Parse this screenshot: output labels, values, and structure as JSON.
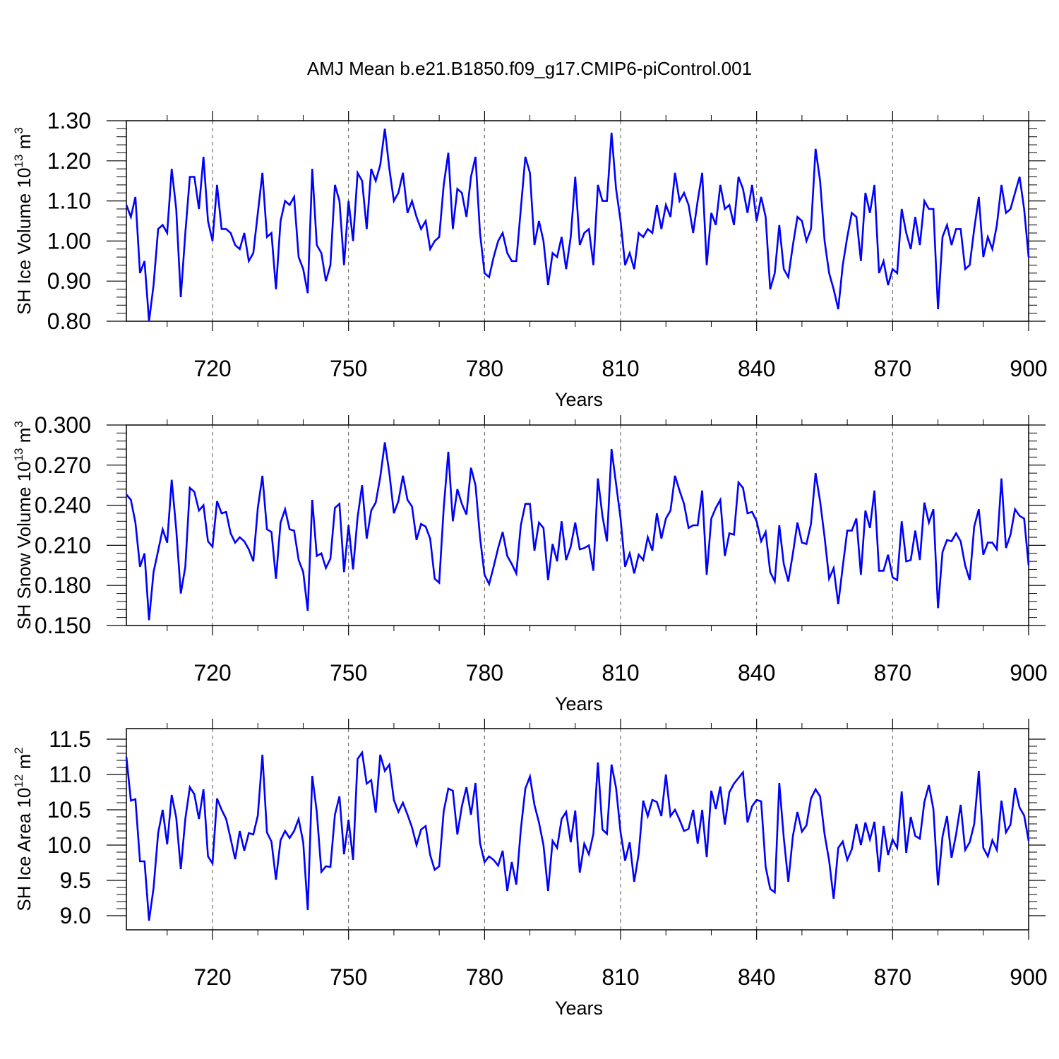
{
  "figure": {
    "title": "AMJ Mean b.e21.B1850.f09_g17.CMIP6-piControl.001"
  },
  "chart_data": [
    {
      "type": "line",
      "title": "AMJ Mean b.e21.B1850.f09_g17.CMIP6-piControl.001",
      "xlabel": "Years",
      "ylabel": "SH Ice Volume 10",
      "ylabel_exp": "13",
      "ylabel_unit": " m",
      "ylabel_unit_exp": "3",
      "xlim": [
        701,
        900
      ],
      "ylim": [
        0.8,
        1.3
      ],
      "xticks": [
        720,
        750,
        780,
        810,
        840,
        870,
        900
      ],
      "xtick_labels": [
        "720",
        "750",
        "780",
        "810",
        "840",
        "870",
        "900"
      ],
      "yticks": [
        0.8,
        0.9,
        1.0,
        1.1,
        1.2,
        1.3
      ],
      "ytick_labels": [
        "0.80",
        "0.90",
        "1.00",
        "1.10",
        "1.20",
        "1.30"
      ],
      "line_color": "#0000ff",
      "grid_x": "dashed at major ticks",
      "x_start": 701,
      "series": [
        {
          "name": "SH Ice Volume",
          "values": [
            1.09,
            1.06,
            1.11,
            0.92,
            0.95,
            0.8,
            0.89,
            1.03,
            1.04,
            1.02,
            1.18,
            1.08,
            0.86,
            1.02,
            1.16,
            1.16,
            1.08,
            1.21,
            1.05,
            1.0,
            1.14,
            1.03,
            1.03,
            1.02,
            0.99,
            0.98,
            1.02,
            0.95,
            0.97,
            1.07,
            1.17,
            1.01,
            1.02,
            0.88,
            1.05,
            1.1,
            1.09,
            1.11,
            0.96,
            0.93,
            0.87,
            1.18,
            0.99,
            0.97,
            0.9,
            0.94,
            1.14,
            1.1,
            0.94,
            1.1,
            1.0,
            1.17,
            1.15,
            1.03,
            1.18,
            1.15,
            1.19,
            1.28,
            1.18,
            1.1,
            1.12,
            1.17,
            1.07,
            1.1,
            1.06,
            1.03,
            1.05,
            0.98,
            1.0,
            1.01,
            1.14,
            1.22,
            1.03,
            1.13,
            1.12,
            1.06,
            1.16,
            1.21,
            1.02,
            0.92,
            0.91,
            0.96,
            1.0,
            1.02,
            0.97,
            0.95,
            0.95,
            1.08,
            1.21,
            1.17,
            0.99,
            1.05,
            1.0,
            0.89,
            0.97,
            0.96,
            1.01,
            0.93,
            1.01,
            1.16,
            0.99,
            1.02,
            1.03,
            0.94,
            1.14,
            1.1,
            1.1,
            1.27,
            1.13,
            1.05,
            0.94,
            0.97,
            0.93,
            1.02,
            1.01,
            1.03,
            1.02,
            1.09,
            1.03,
            1.09,
            1.06,
            1.17,
            1.1,
            1.12,
            1.09,
            1.02,
            1.1,
            1.17,
            0.94,
            1.07,
            1.04,
            1.14,
            1.08,
            1.09,
            1.04,
            1.16,
            1.13,
            1.07,
            1.14,
            1.05,
            1.11,
            1.06,
            0.88,
            0.92,
            1.04,
            0.93,
            0.91,
            0.99,
            1.06,
            1.05,
            1.0,
            1.03,
            1.23,
            1.15,
            1.0,
            0.92,
            0.88,
            0.83,
            0.94,
            1.01,
            1.07,
            1.06,
            0.95,
            1.12,
            1.07,
            1.14,
            0.92,
            0.95,
            0.89,
            0.93,
            0.92,
            1.08,
            1.02,
            0.98,
            1.06,
            0.99,
            1.1,
            1.08,
            1.08,
            0.83,
            1.01,
            1.04,
            0.99,
            1.03,
            1.03,
            0.93,
            0.94,
            1.03,
            1.11,
            0.96,
            1.01,
            0.98,
            1.04,
            1.14,
            1.07,
            1.08,
            1.12,
            1.16,
            1.08,
            0.96
          ]
        }
      ]
    },
    {
      "type": "line",
      "xlabel": "Years",
      "ylabel": "SH Snow Volume 10",
      "ylabel_exp": "13",
      "ylabel_unit": " m",
      "ylabel_unit_exp": "3",
      "xlim": [
        701,
        900
      ],
      "ylim": [
        0.15,
        0.3
      ],
      "xticks": [
        720,
        750,
        780,
        810,
        840,
        870,
        900
      ],
      "xtick_labels": [
        "720",
        "750",
        "780",
        "810",
        "840",
        "870",
        "900"
      ],
      "yticks": [
        0.15,
        0.18,
        0.21,
        0.24,
        0.27,
        0.3
      ],
      "ytick_labels": [
        "0.150",
        "0.180",
        "0.210",
        "0.240",
        "0.270",
        "0.300"
      ],
      "line_color": "#0000ff",
      "grid_x": "dashed at major ticks",
      "x_start": 701,
      "series": [
        {
          "name": "SH Snow Volume",
          "values": [
            0.248,
            0.244,
            0.227,
            0.194,
            0.204,
            0.154,
            0.19,
            0.206,
            0.222,
            0.212,
            0.259,
            0.222,
            0.174,
            0.194,
            0.253,
            0.25,
            0.236,
            0.24,
            0.213,
            0.209,
            0.243,
            0.234,
            0.235,
            0.219,
            0.212,
            0.216,
            0.213,
            0.207,
            0.198,
            0.238,
            0.262,
            0.222,
            0.22,
            0.185,
            0.227,
            0.237,
            0.222,
            0.221,
            0.199,
            0.19,
            0.161,
            0.244,
            0.202,
            0.204,
            0.193,
            0.2,
            0.238,
            0.241,
            0.19,
            0.225,
            0.192,
            0.231,
            0.255,
            0.215,
            0.236,
            0.242,
            0.261,
            0.287,
            0.264,
            0.234,
            0.243,
            0.262,
            0.244,
            0.239,
            0.214,
            0.226,
            0.224,
            0.215,
            0.185,
            0.182,
            0.238,
            0.28,
            0.228,
            0.252,
            0.241,
            0.233,
            0.268,
            0.255,
            0.216,
            0.188,
            0.181,
            0.194,
            0.208,
            0.22,
            0.202,
            0.196,
            0.189,
            0.225,
            0.241,
            0.241,
            0.206,
            0.227,
            0.223,
            0.184,
            0.211,
            0.198,
            0.228,
            0.199,
            0.209,
            0.227,
            0.207,
            0.208,
            0.21,
            0.191,
            0.26,
            0.232,
            0.213,
            0.282,
            0.256,
            0.23,
            0.194,
            0.204,
            0.189,
            0.203,
            0.199,
            0.216,
            0.206,
            0.234,
            0.215,
            0.23,
            0.236,
            0.262,
            0.251,
            0.241,
            0.223,
            0.225,
            0.225,
            0.251,
            0.188,
            0.23,
            0.238,
            0.244,
            0.202,
            0.219,
            0.218,
            0.257,
            0.253,
            0.234,
            0.235,
            0.228,
            0.213,
            0.22,
            0.19,
            0.183,
            0.225,
            0.196,
            0.183,
            0.204,
            0.227,
            0.212,
            0.211,
            0.226,
            0.264,
            0.243,
            0.216,
            0.185,
            0.193,
            0.166,
            0.194,
            0.221,
            0.221,
            0.23,
            0.188,
            0.236,
            0.223,
            0.251,
            0.191,
            0.191,
            0.203,
            0.186,
            0.184,
            0.228,
            0.198,
            0.199,
            0.221,
            0.199,
            0.242,
            0.227,
            0.237,
            0.163,
            0.205,
            0.214,
            0.213,
            0.219,
            0.213,
            0.195,
            0.184,
            0.224,
            0.237,
            0.203,
            0.212,
            0.212,
            0.207,
            0.26,
            0.208,
            0.218,
            0.237,
            0.232,
            0.23,
            0.195
          ]
        }
      ]
    },
    {
      "type": "line",
      "xlabel": "Years",
      "ylabel": "SH Ice Area 10",
      "ylabel_exp": "12",
      "ylabel_unit": " m",
      "ylabel_unit_exp": "2",
      "xlim": [
        701,
        900
      ],
      "ylim": [
        8.8,
        11.65
      ],
      "xticks": [
        720,
        750,
        780,
        810,
        840,
        870,
        900
      ],
      "xtick_labels": [
        "720",
        "750",
        "780",
        "810",
        "840",
        "870",
        "900"
      ],
      "yticks": [
        9.0,
        9.5,
        10.0,
        10.5,
        11.0,
        11.5
      ],
      "ytick_labels": [
        "9.0",
        "9.5",
        "10.0",
        "10.5",
        "11.0",
        "11.5"
      ],
      "line_color": "#0000ff",
      "grid_x": "dashed at major ticks",
      "x_start": 701,
      "series": [
        {
          "name": "SH Ice Area",
          "values": [
            11.25,
            10.63,
            10.65,
            9.77,
            9.77,
            8.93,
            9.39,
            10.17,
            10.5,
            10.01,
            10.71,
            10.39,
            9.66,
            10.37,
            10.82,
            10.72,
            10.37,
            10.79,
            9.84,
            9.74,
            10.66,
            10.5,
            10.37,
            10.09,
            9.8,
            10.2,
            9.92,
            10.17,
            10.15,
            10.42,
            11.28,
            10.18,
            10.05,
            9.51,
            10.07,
            10.2,
            10.1,
            10.2,
            10.37,
            10.04,
            9.08,
            10.98,
            10.47,
            9.62,
            9.7,
            9.69,
            10.43,
            10.69,
            9.87,
            10.36,
            9.79,
            11.22,
            11.31,
            10.87,
            10.92,
            10.46,
            11.28,
            11.05,
            11.14,
            10.64,
            10.47,
            10.6,
            10.43,
            10.25,
            10.0,
            10.22,
            10.27,
            9.86,
            9.65,
            9.7,
            10.48,
            10.8,
            10.77,
            10.15,
            10.55,
            10.82,
            10.43,
            10.88,
            10.03,
            9.76,
            9.84,
            9.79,
            9.71,
            9.92,
            9.35,
            9.76,
            9.44,
            10.22,
            10.8,
            10.97,
            10.57,
            10.32,
            10.0,
            9.35,
            10.06,
            9.96,
            10.37,
            10.47,
            10.04,
            10.49,
            9.61,
            10.02,
            9.87,
            10.16,
            11.17,
            10.22,
            10.16,
            11.14,
            10.81,
            10.18,
            9.78,
            10.04,
            9.48,
            9.88,
            10.63,
            10.41,
            10.64,
            10.61,
            10.41,
            11.0,
            10.41,
            10.5,
            10.36,
            10.2,
            10.23,
            10.5,
            10.02,
            10.5,
            9.83,
            10.77,
            10.51,
            10.83,
            10.29,
            10.75,
            10.87,
            10.95,
            11.03,
            10.32,
            10.55,
            10.64,
            10.62,
            9.69,
            9.38,
            9.33,
            10.88,
            10.1,
            9.48,
            10.13,
            10.47,
            10.19,
            10.28,
            10.66,
            10.79,
            10.69,
            10.15,
            9.78,
            9.24,
            9.96,
            10.05,
            9.79,
            9.94,
            10.3,
            10.0,
            10.32,
            10.08,
            10.33,
            9.62,
            10.27,
            9.86,
            10.08,
            9.96,
            10.76,
            9.89,
            10.4,
            10.13,
            10.09,
            10.61,
            10.85,
            10.51,
            9.43,
            10.12,
            10.41,
            9.82,
            10.15,
            10.57,
            9.93,
            10.04,
            10.3,
            11.05,
            9.96,
            9.84,
            10.07,
            9.93,
            10.63,
            10.18,
            10.29,
            10.81,
            10.53,
            10.42,
            10.06
          ]
        }
      ]
    }
  ]
}
